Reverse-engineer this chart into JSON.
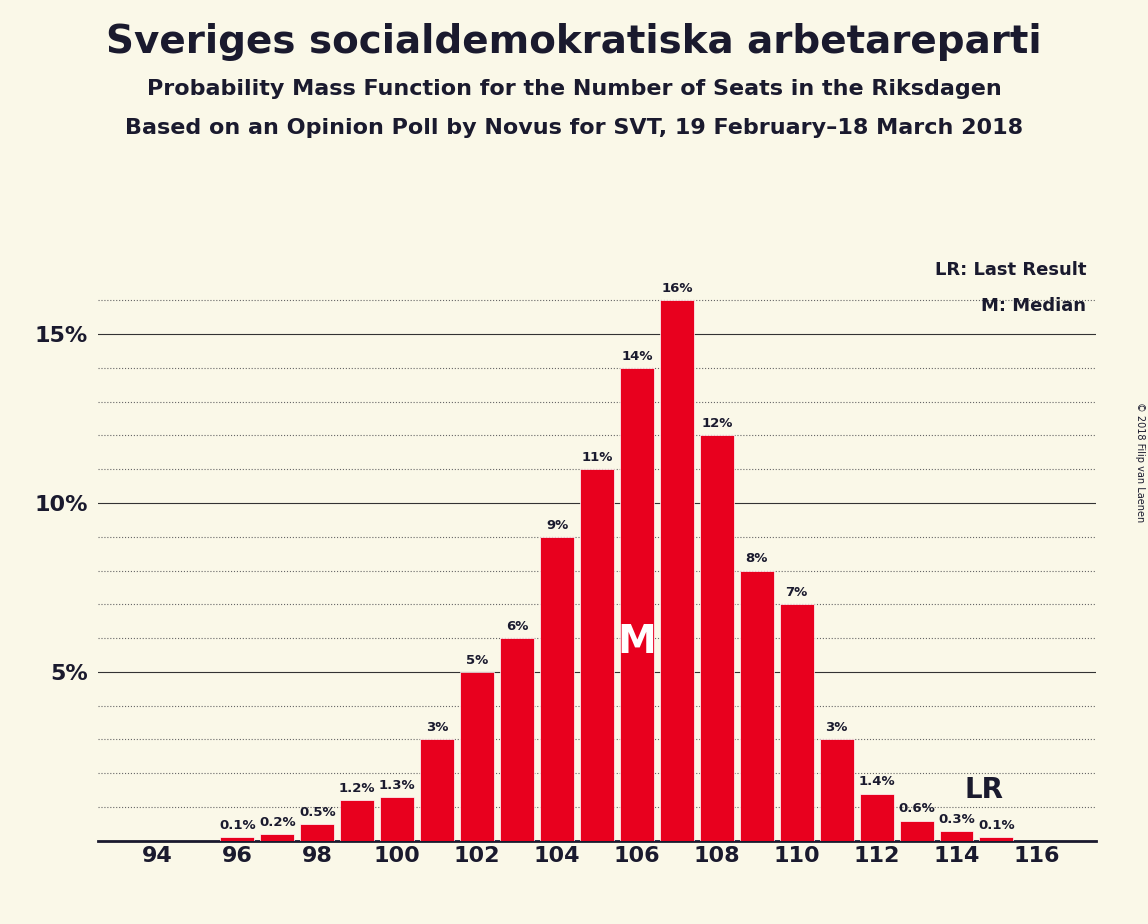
{
  "title": "Sveriges socialdemokratiska arbetareparti",
  "subtitle1": "Probability Mass Function for the Number of Seats in the Riksdagen",
  "subtitle2": "Based on an Opinion Poll by Novus for SVT, 19 February–18 March 2018",
  "copyright": "© 2018 Filip van Laenen",
  "seats": [
    94,
    95,
    96,
    97,
    98,
    99,
    100,
    101,
    102,
    103,
    104,
    105,
    106,
    107,
    108,
    109,
    110,
    111,
    112,
    113,
    114,
    115,
    116
  ],
  "probabilities": [
    0.0,
    0.0,
    0.001,
    0.002,
    0.005,
    0.012,
    0.013,
    0.03,
    0.05,
    0.06,
    0.09,
    0.11,
    0.14,
    0.16,
    0.12,
    0.08,
    0.07,
    0.03,
    0.014,
    0.006,
    0.003,
    0.001,
    0.0
  ],
  "bar_color": "#e8001e",
  "background_color": "#faf8e8",
  "text_color": "#1a1a2e",
  "median_seat": 106,
  "last_result_seat": 113,
  "ylim": [
    0,
    0.175
  ],
  "yticks": [
    0.0,
    0.05,
    0.1,
    0.15
  ],
  "ytick_labels": [
    "",
    "5%",
    "10%",
    "15%"
  ],
  "xtick_seats": [
    94,
    96,
    98,
    100,
    102,
    104,
    106,
    108,
    110,
    112,
    114,
    116
  ],
  "extra_gridlines": [
    0.01,
    0.02,
    0.03,
    0.04,
    0.06,
    0.07,
    0.08,
    0.09,
    0.11,
    0.12,
    0.13,
    0.14,
    0.16
  ]
}
